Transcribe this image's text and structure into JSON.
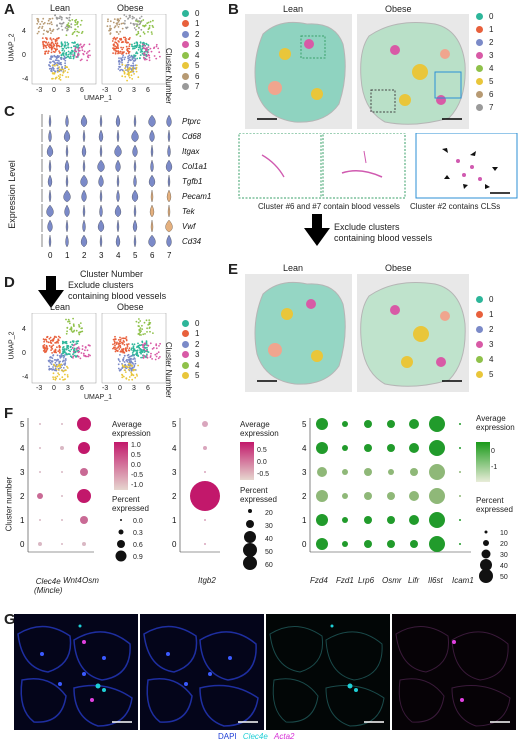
{
  "panel_letters": [
    "A",
    "B",
    "C",
    "D",
    "E",
    "F",
    "G"
  ],
  "panelA": {
    "titles": [
      "Lean",
      "Obese"
    ],
    "xlabel": "UMAP_1",
    "ylabel": "UMAP_2",
    "legend_title": "Cluster Number",
    "clusters": [
      "0",
      "1",
      "2",
      "3",
      "4",
      "5",
      "6",
      "7"
    ],
    "xticks": [
      "-3",
      "0",
      "3",
      "6"
    ],
    "yticks": [
      "4",
      "0",
      "-4"
    ]
  },
  "palette": [
    "#2db69a",
    "#e8603c",
    "#7b8ac8",
    "#d85aa6",
    "#8fc14a",
    "#e9c63a",
    "#b79a73",
    "#9a9a9a"
  ],
  "panelB": {
    "titles": [
      "Lean",
      "Obese"
    ],
    "clusters": [
      "0",
      "1",
      "2",
      "3",
      "4",
      "5",
      "6",
      "7"
    ],
    "captions": [
      "Cluster #6 and #7 contain blood vessels",
      "Cluster #2 contains CLSs"
    ]
  },
  "arrow1_text": "Exclude clusters\ncontaining blood vessels",
  "arrow2_text": "Exclude clusters\ncontaining blood vessels",
  "panelC": {
    "genes": [
      "Ptprc",
      "Cd68",
      "Itgax",
      "Col1a1",
      "Tgfb1",
      "Pecam1",
      "Tek",
      "Vwf",
      "Cd34"
    ],
    "ylabel": "Expression Level",
    "xlabel": "Cluster Number",
    "clusters": [
      "0",
      "1",
      "2",
      "3",
      "4",
      "5",
      "6",
      "7"
    ]
  },
  "panelD": {
    "titles": [
      "Lean",
      "Obese"
    ],
    "xlabel": "UMAP_1",
    "ylabel": "UMAP_2",
    "legend_title": "Cluster Number",
    "clusters": [
      "0",
      "1",
      "2",
      "3",
      "4",
      "5"
    ],
    "xticks": [
      "-3",
      "0",
      "3",
      "6"
    ],
    "yticks": [
      "4",
      "0",
      "-4"
    ]
  },
  "panelE": {
    "titles": [
      "Lean",
      "Obese"
    ],
    "clusters": [
      "0",
      "1",
      "2",
      "3",
      "4",
      "5"
    ]
  },
  "panelF": {
    "ylabel": "Cluster number",
    "clusters": [
      "0",
      "1",
      "2",
      "3",
      "4",
      "5"
    ],
    "dot1": {
      "genes": [
        "Clec4e\n(Mincle)",
        "Wnt4",
        "Osm"
      ],
      "legend_title": "Average\nexpression",
      "ticks": [
        "1.0",
        "0.5",
        "0.0",
        "-0.5",
        "-1.0"
      ],
      "pct_title": "Percent\nexpressed",
      "pct": [
        "0.0",
        "0.3",
        "0.6",
        "0.9"
      ]
    },
    "dot2": {
      "genes": [
        "Itgb2"
      ],
      "legend_title": "Average\nexpression",
      "ticks": [
        "0.5",
        "0.0",
        "-0.5"
      ],
      "pct_title": "Percent\nexpressed",
      "pct": [
        "20",
        "30",
        "40",
        "50",
        "60"
      ]
    },
    "dot3": {
      "genes": [
        "Fzd4",
        "Fzd1",
        "Lrp6",
        "Osmr",
        "Lifr",
        "Il6st",
        "Icam1"
      ],
      "legend_title": "Average\nexpression",
      "ticks": [
        "0",
        "-1"
      ],
      "pct_title": "Percent\nexpressed",
      "pct": [
        "10",
        "20",
        "30",
        "40",
        "50"
      ]
    }
  },
  "panelG": {
    "legend": [
      "DAPI",
      "Clec4e",
      "Acta2"
    ],
    "legend_colors": [
      "#1f3fd6",
      "#1ecfd6",
      "#d62fd6"
    ]
  }
}
